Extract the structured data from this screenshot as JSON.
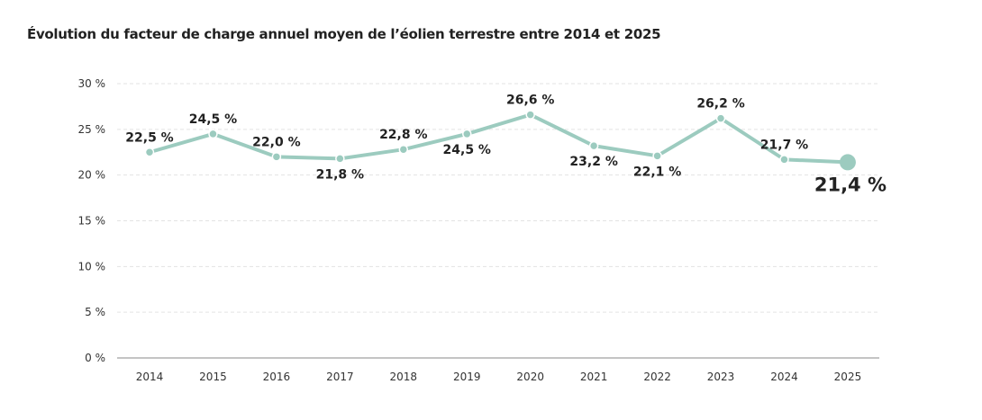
{
  "chart_data": {
    "type": "line",
    "title": "Évolution du facteur de charge annuel moyen de l’éolien terrestre entre 2014 et 2025",
    "categories": [
      "2014",
      "2015",
      "2016",
      "2017",
      "2018",
      "2019",
      "2020",
      "2021",
      "2022",
      "2023",
      "2024",
      "2025"
    ],
    "values": [
      22.5,
      24.5,
      22.0,
      21.8,
      22.8,
      24.5,
      26.6,
      23.2,
      22.1,
      26.2,
      21.7,
      21.4
    ],
    "data_labels": [
      "22,5 %",
      "24,5 %",
      "22,0 %",
      "21,8 %",
      "22,8 %",
      "24,5 %",
      "26,6 %",
      "23,2 %",
      "22,1 %",
      "26,2 %",
      "21,7 %",
      "21,4 %"
    ],
    "yticks": [
      0,
      5,
      10,
      15,
      20,
      25,
      30
    ],
    "ytick_labels": [
      "0 %",
      "5 %",
      "10 %",
      "15 %",
      "20 %",
      "25 %",
      "30 %"
    ],
    "ylim": [
      0,
      30
    ],
    "xlabel": "",
    "ylabel": "",
    "grid": true,
    "line_color": "#9ccbbf",
    "highlight_last": true
  }
}
